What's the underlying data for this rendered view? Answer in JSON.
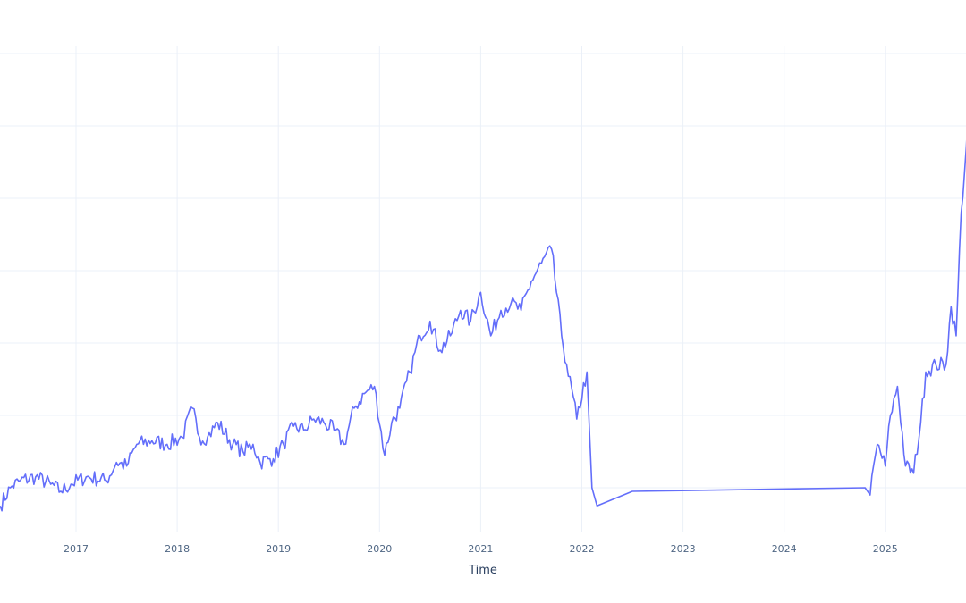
{
  "chart_data": {
    "type": "line",
    "title": "",
    "xlabel": "Time",
    "ylabel": "",
    "x_ticks": [
      "2017",
      "2018",
      "2019",
      "2020",
      "2021",
      "2022",
      "2023",
      "2024",
      "2025"
    ],
    "y_ticks_visible": false,
    "y_grid_levels": [
      0,
      1,
      2,
      3,
      4,
      5,
      6
    ],
    "grid": true,
    "legend": null,
    "series": [
      {
        "name": "value",
        "color": "#636efa",
        "x": [
          2016.25,
          2016.35,
          2016.45,
          2016.6,
          2016.75,
          2016.85,
          2016.95,
          2017.1,
          2017.3,
          2017.4,
          2017.5,
          2017.6,
          2017.75,
          2017.9,
          2018.05,
          2018.15,
          2018.22,
          2018.3,
          2018.4,
          2018.55,
          2018.65,
          2018.75,
          2018.82,
          2018.9,
          2018.95,
          2019.05,
          2019.15,
          2019.25,
          2019.35,
          2019.45,
          2019.55,
          2019.65,
          2019.75,
          2019.85,
          2019.95,
          2020.05,
          2020.12,
          2020.2,
          2020.3,
          2020.4,
          2020.5,
          2020.6,
          2020.7,
          2020.8,
          2020.9,
          2021.0,
          2021.1,
          2021.2,
          2021.3,
          2021.4,
          2021.5,
          2021.6,
          2021.7,
          2021.8,
          2021.85,
          2021.95,
          2022.05,
          2022.1,
          2022.15,
          2022.5,
          2024.8,
          2024.85,
          2024.92,
          2025.0,
          2025.05,
          2025.12,
          2025.2,
          2025.28,
          2025.35,
          2025.4,
          2025.5,
          2025.6,
          2025.65,
          2025.7,
          2025.75,
          2025.8,
          2025.85
        ],
        "values": [
          -0.25,
          0.0,
          0.1,
          0.15,
          0.05,
          -0.05,
          0.05,
          0.15,
          0.1,
          0.35,
          0.3,
          0.6,
          0.65,
          0.6,
          0.7,
          1.1,
          0.7,
          0.7,
          0.9,
          0.6,
          0.5,
          0.6,
          0.35,
          0.4,
          0.4,
          0.6,
          0.85,
          0.8,
          0.95,
          0.9,
          0.8,
          0.6,
          1.1,
          1.3,
          1.4,
          0.45,
          0.9,
          1.1,
          1.6,
          2.1,
          2.3,
          1.9,
          2.1,
          2.45,
          2.3,
          2.7,
          2.1,
          2.45,
          2.55,
          2.45,
          2.85,
          3.1,
          3.3,
          2.1,
          1.7,
          0.95,
          1.6,
          0.0,
          -0.25,
          -0.05,
          0.0,
          -0.1,
          0.6,
          0.3,
          1.0,
          1.4,
          0.3,
          0.2,
          0.9,
          1.6,
          1.7,
          1.7,
          2.5,
          2.1,
          3.8,
          4.7,
          5.8
        ]
      }
    ]
  },
  "axes": {
    "x_title": "Time"
  }
}
